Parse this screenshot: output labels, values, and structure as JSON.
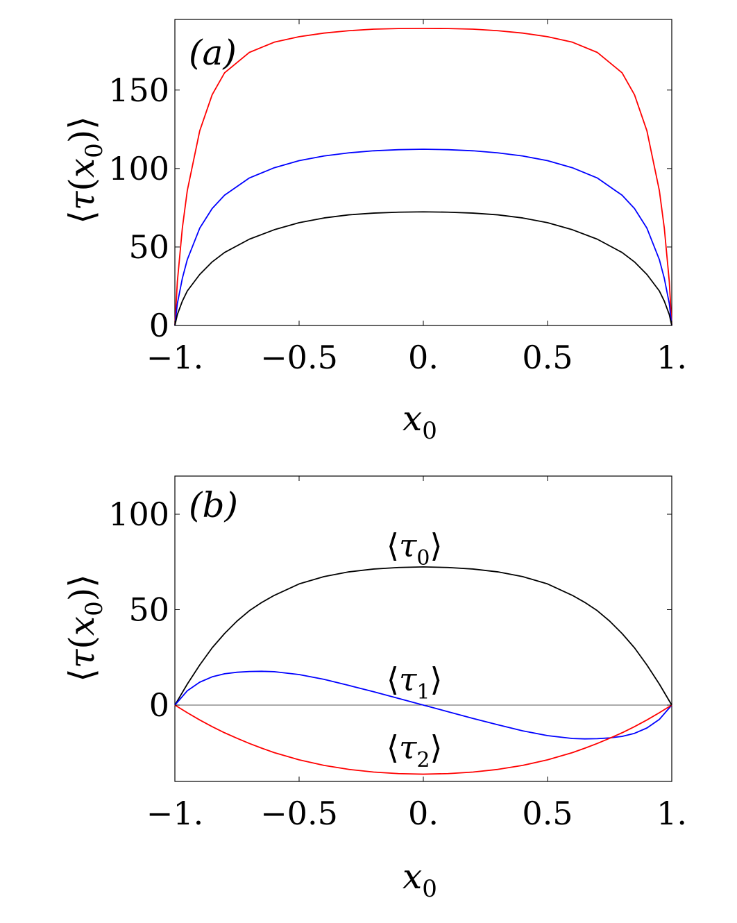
{
  "chart_data": [
    {
      "panel": "(a)",
      "type": "line",
      "xlabel": "x0",
      "ylabel": "⟨τ(x0)⟩",
      "xlim": [
        -1,
        1
      ],
      "ylim": [
        0,
        195
      ],
      "x_ticks": [
        -1,
        -0.5,
        0,
        0.5,
        1
      ],
      "x_tick_labels": [
        "−1.",
        "−0.5",
        "0.",
        "0.5",
        "1."
      ],
      "y_ticks": [
        0,
        50,
        100,
        150
      ],
      "y_tick_labels": [
        "0",
        "50",
        "100",
        "150"
      ],
      "grid": false,
      "x": [
        -1.0,
        -0.99,
        -0.97,
        -0.95,
        -0.9,
        -0.85,
        -0.8,
        -0.7,
        -0.6,
        -0.5,
        -0.4,
        -0.3,
        -0.2,
        -0.1,
        0.0,
        0.1,
        0.2,
        0.3,
        0.4,
        0.5,
        0.6,
        0.7,
        0.8,
        0.85,
        0.9,
        0.95,
        0.97,
        0.99,
        1.0
      ],
      "series": [
        {
          "color": "#ff0000",
          "values": [
            0,
            28,
            62,
            86,
            124,
            147,
            161,
            174,
            180.5,
            184,
            186.3,
            187.8,
            188.8,
            189.2,
            189.3,
            189.2,
            188.8,
            187.8,
            186.3,
            184,
            180.5,
            174,
            161,
            147,
            124,
            86,
            62,
            28,
            0
          ]
        },
        {
          "color": "#0000ff",
          "values": [
            0,
            14,
            30,
            42,
            62,
            74.5,
            83,
            94,
            100.5,
            105,
            108,
            110,
            111.3,
            112,
            112.3,
            112,
            111.3,
            110,
            108,
            105,
            100.5,
            94,
            83,
            74.5,
            62,
            42,
            30,
            14,
            0
          ]
        },
        {
          "color": "#000000",
          "values": [
            0,
            7,
            15.5,
            22,
            32.5,
            40.5,
            46.5,
            55,
            61,
            65.5,
            68.5,
            70.5,
            71.6,
            72.2,
            72.4,
            72.2,
            71.6,
            70.5,
            68.5,
            65.5,
            61,
            55,
            46.5,
            40.5,
            32.5,
            22,
            15.5,
            7,
            0
          ]
        }
      ]
    },
    {
      "panel": "(b)",
      "type": "line",
      "xlabel": "x0",
      "ylabel": "⟨τ(x0)⟩",
      "xlim": [
        -1,
        1
      ],
      "ylim": [
        -40,
        120
      ],
      "x_ticks": [
        -1,
        -0.5,
        0,
        0.5,
        1
      ],
      "x_tick_labels": [
        "−1.",
        "−0.5",
        "0.",
        "0.5",
        "1."
      ],
      "y_ticks": [
        0,
        50,
        100
      ],
      "y_tick_labels": [
        "0",
        "50",
        "100"
      ],
      "grid": false,
      "zero_line": true,
      "x": [
        -1.0,
        -0.95,
        -0.9,
        -0.85,
        -0.8,
        -0.75,
        -0.7,
        -0.65,
        -0.6,
        -0.5,
        -0.4,
        -0.3,
        -0.2,
        -0.1,
        0.0,
        0.1,
        0.2,
        0.3,
        0.4,
        0.5,
        0.6,
        0.65,
        0.7,
        0.75,
        0.8,
        0.85,
        0.9,
        0.95,
        1.0
      ],
      "series": [
        {
          "color": "#000000",
          "annotation": "⟨τ0⟩",
          "values": [
            0,
            11,
            21,
            30,
            37.5,
            44,
            49.5,
            53.8,
            57.5,
            63.5,
            67.3,
            69.8,
            71.3,
            72.1,
            72.4,
            72.1,
            71.3,
            69.8,
            67.3,
            63.5,
            57.5,
            53.8,
            49.5,
            44,
            37.5,
            30,
            21,
            11,
            0
          ]
        },
        {
          "color": "#0000ff",
          "annotation": "⟨τ1⟩",
          "values": [
            0,
            7.5,
            12,
            14.8,
            16.4,
            17.2,
            17.6,
            17.7,
            17.5,
            16,
            13.5,
            10.3,
            7,
            3.5,
            0,
            -3.5,
            -7,
            -10.3,
            -13.5,
            -16,
            -17.5,
            -17.7,
            -17.6,
            -17.2,
            -16.4,
            -14.8,
            -12,
            -7.5,
            0
          ]
        },
        {
          "color": "#ff0000",
          "annotation": "⟨τ2⟩",
          "values": [
            0,
            -4,
            -7.8,
            -11.3,
            -14.5,
            -17.4,
            -20.1,
            -22.6,
            -24.9,
            -28.7,
            -31.6,
            -33.7,
            -35.1,
            -35.9,
            -36.2,
            -35.9,
            -35.1,
            -33.7,
            -31.6,
            -28.7,
            -24.9,
            -22.6,
            -20.1,
            -17.4,
            -14.5,
            -11.3,
            -7.8,
            -4,
            0
          ]
        }
      ]
    }
  ]
}
